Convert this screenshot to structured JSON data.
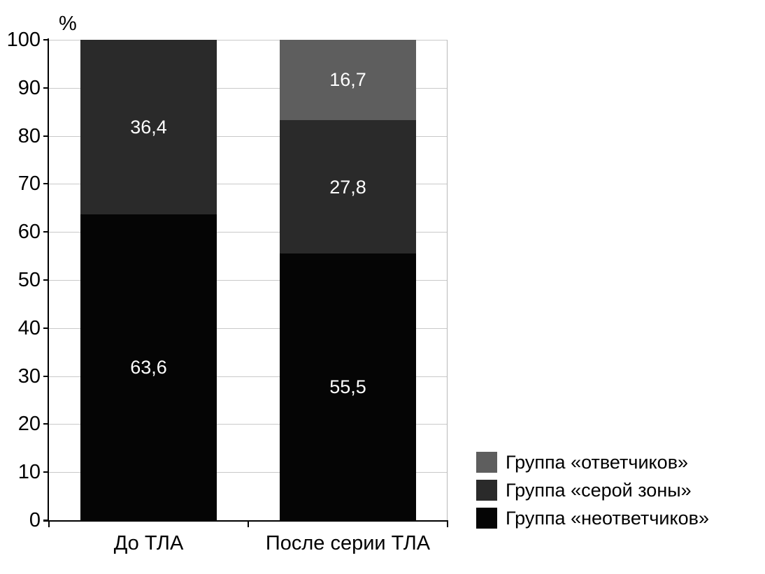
{
  "chart_data": {
    "type": "bar",
    "stacked": true,
    "unit_label": "%",
    "categories": [
      "До ТЛА",
      "После серии ТЛА"
    ],
    "series": [
      {
        "name": "Группа «неответчиков»",
        "color": "#050505",
        "values": [
          63.6,
          55.5
        ],
        "labels": [
          "63,6",
          "55,5"
        ]
      },
      {
        "name": "Группа «серой зоны»",
        "color": "#2a2a2a",
        "values": [
          36.4,
          27.8
        ],
        "labels": [
          "36,4",
          "27,8"
        ]
      },
      {
        "name": "Группа «ответчиков»",
        "color": "#5e5e5e",
        "values": [
          0,
          16.7
        ],
        "labels": [
          null,
          "16,7"
        ]
      }
    ],
    "ylim": [
      0,
      100
    ],
    "yticks": [
      0,
      10,
      20,
      30,
      40,
      50,
      60,
      70,
      80,
      90,
      100
    ],
    "grid": true,
    "legend_position": "bottom-right",
    "legend_order_top_to_bottom": [
      "Группа «ответчиков»",
      "Группа «серой зоны»",
      "Группа «неответчиков»"
    ]
  }
}
